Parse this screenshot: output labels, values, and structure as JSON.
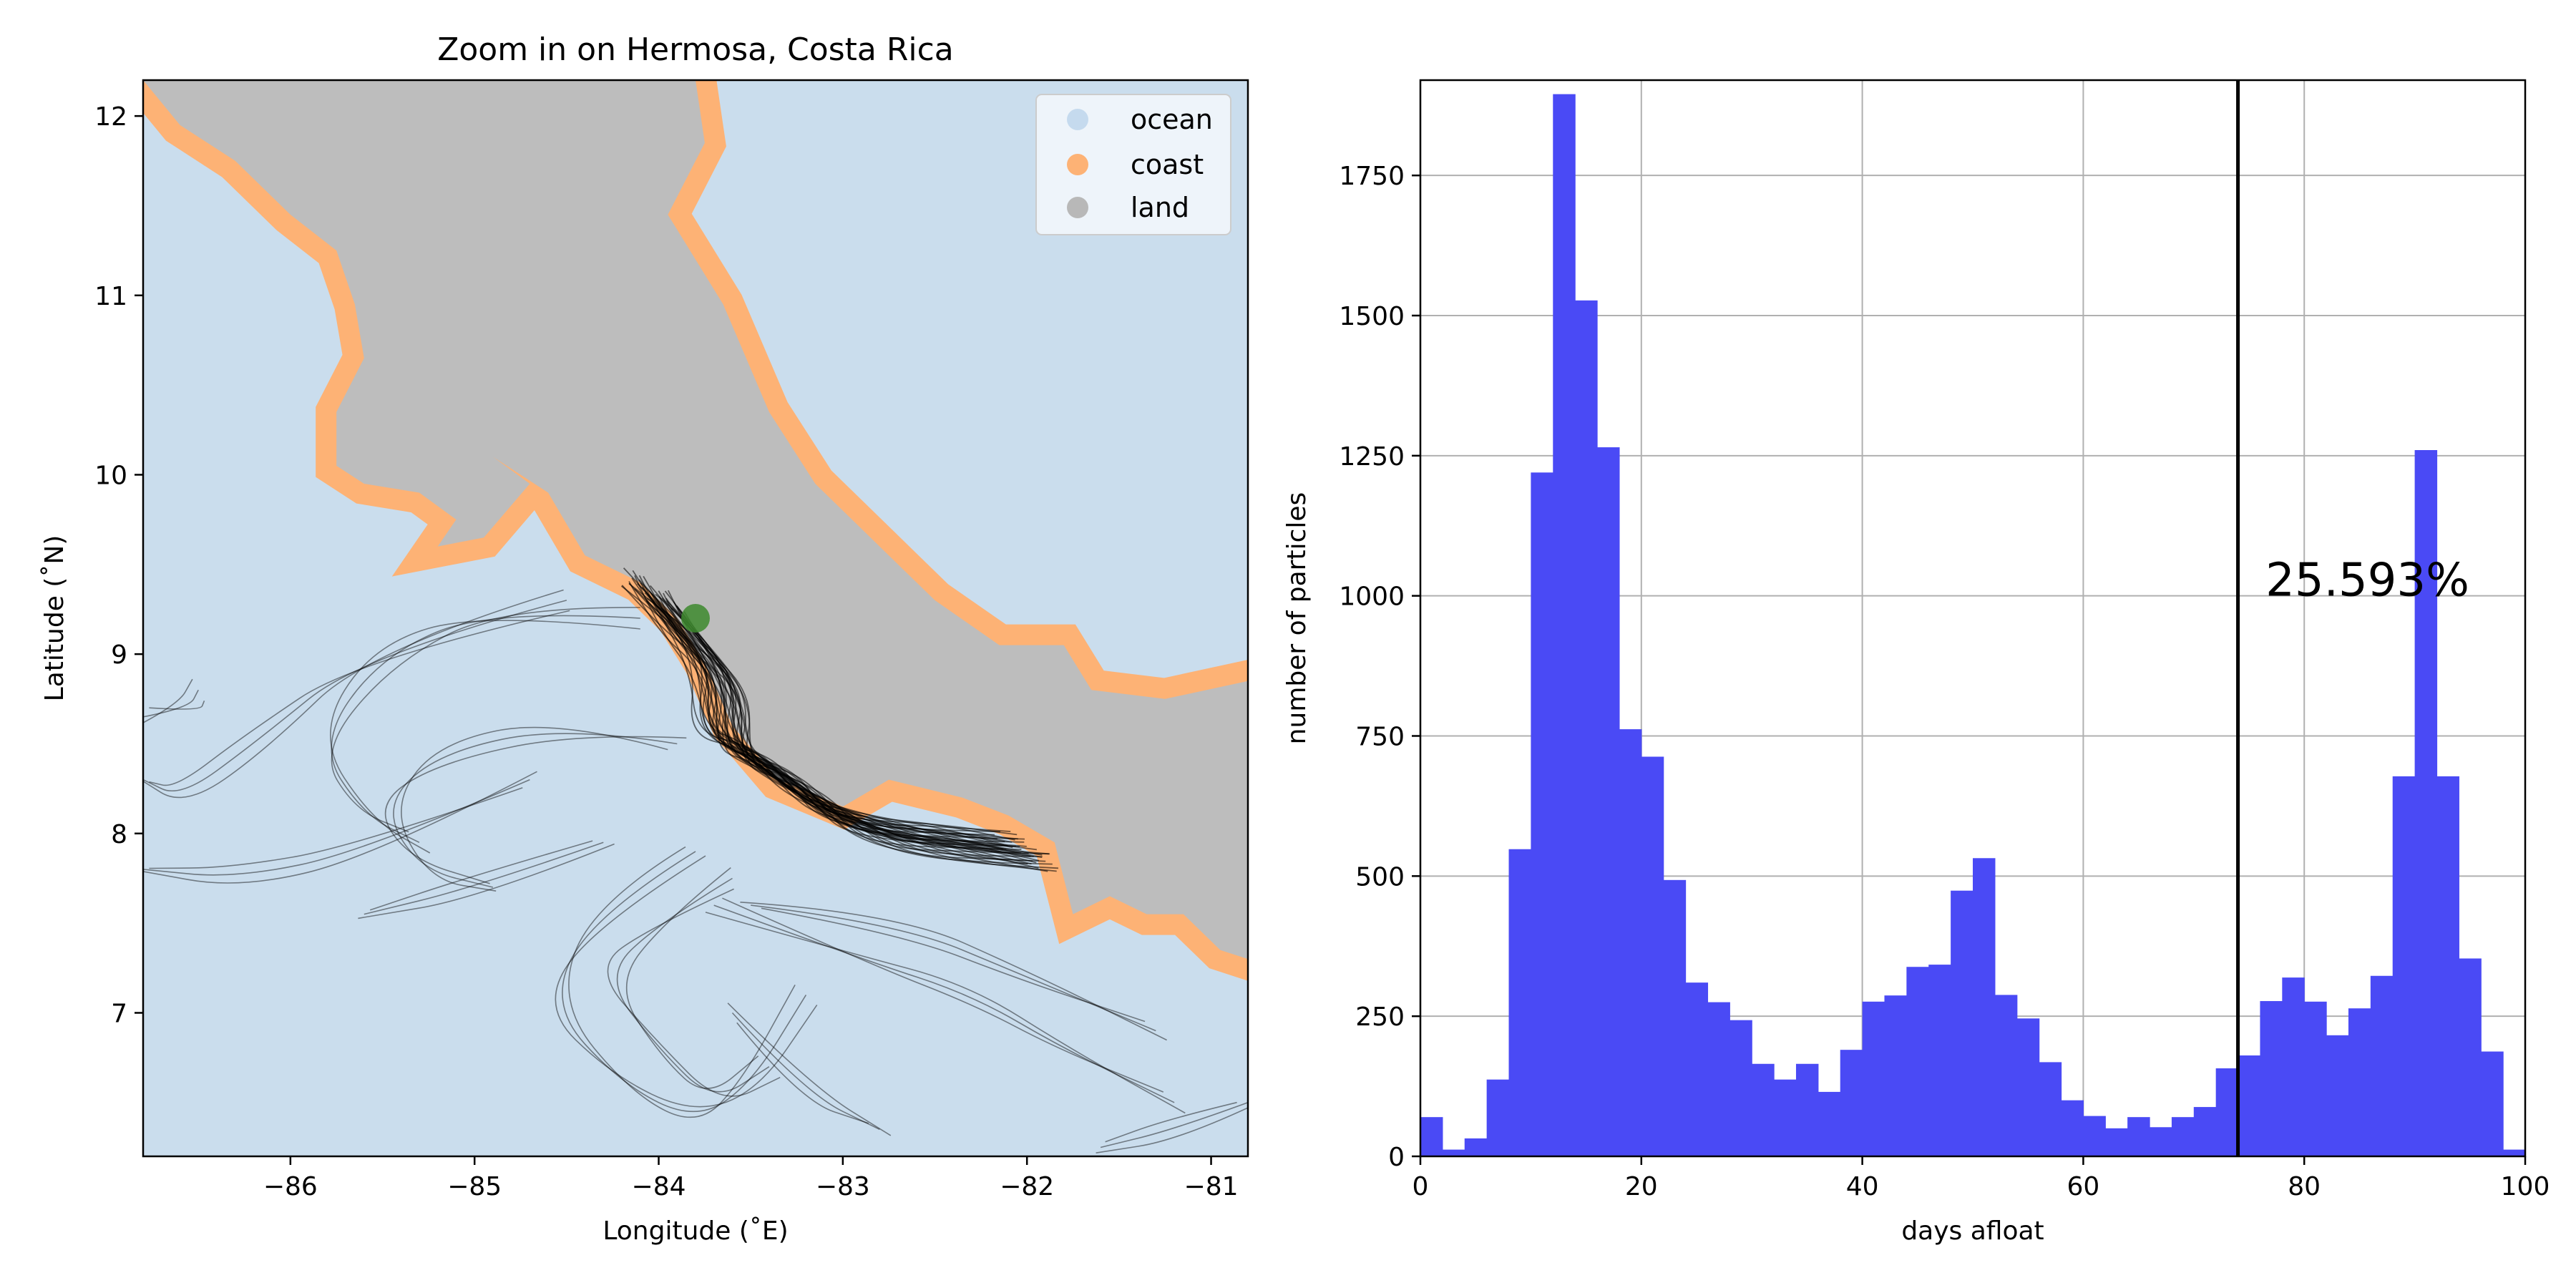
{
  "chart_data": [
    {
      "type": "map",
      "title": "Zoom in on Hermosa, Costa Rica",
      "xlabel": "Longitude (˚E)",
      "ylabel": "Latitude (˚N)",
      "xlim": [
        -86.8,
        -80.8
      ],
      "ylim": [
        6.2,
        12.2
      ],
      "xticks": [
        -86,
        -85,
        -84,
        -83,
        -82,
        -81
      ],
      "yticks": [
        7,
        8,
        9,
        10,
        11,
        12
      ],
      "xtick_labels": [
        "−86",
        "−85",
        "−84",
        "−83",
        "−82",
        "−81"
      ],
      "ytick_labels": [
        "7",
        "8",
        "9",
        "10",
        "11",
        "12"
      ],
      "legend_position": "top-right",
      "legend": [
        {
          "label": "ocean",
          "color": "#c5daee"
        },
        {
          "label": "coast",
          "color": "#fdb275"
        },
        {
          "label": "land",
          "color": "#b8b8b8"
        }
      ],
      "colors": {
        "ocean": "#cadded",
        "coast": "#fdb275",
        "land": "#bdbdbd",
        "release_site": "#3d8a2e",
        "trajectories": "#000000"
      },
      "release_site": {
        "lon": -83.8,
        "lat": 9.2
      },
      "coast_outline": [
        [
          -86.8,
          12.2
        ],
        [
          -86.6,
          11.95
        ],
        [
          -86.3,
          11.75
        ],
        [
          -86.0,
          11.45
        ],
        [
          -85.75,
          11.25
        ],
        [
          -85.65,
          10.95
        ],
        [
          -85.6,
          10.65
        ],
        [
          -85.75,
          10.35
        ],
        [
          -85.75,
          10.05
        ],
        [
          -85.6,
          9.95
        ],
        [
          -85.3,
          9.9
        ],
        [
          -85.1,
          9.75
        ],
        [
          -85.2,
          9.6
        ],
        [
          -84.95,
          9.65
        ],
        [
          -84.7,
          9.95
        ],
        [
          -84.9,
          10.1
        ],
        [
          -84.6,
          9.9
        ],
        [
          -84.4,
          9.55
        ],
        [
          -84.1,
          9.4
        ],
        [
          -83.9,
          9.2
        ],
        [
          -83.75,
          8.95
        ],
        [
          -83.6,
          8.6
        ],
        [
          -83.35,
          8.3
        ],
        [
          -83.0,
          8.15
        ],
        [
          -82.75,
          8.3
        ],
        [
          -82.35,
          8.2
        ],
        [
          -82.1,
          8.1
        ],
        [
          -81.85,
          7.95
        ],
        [
          -81.75,
          7.55
        ],
        [
          -81.55,
          7.65
        ],
        [
          -81.35,
          7.55
        ],
        [
          -81.15,
          7.55
        ],
        [
          -80.95,
          7.35
        ],
        [
          -80.8,
          7.3
        ],
        [
          -80.8,
          8.85
        ],
        [
          -81.25,
          8.75
        ],
        [
          -81.65,
          8.8
        ],
        [
          -81.8,
          9.05
        ],
        [
          -82.15,
          9.05
        ],
        [
          -82.5,
          9.3
        ],
        [
          -82.8,
          9.6
        ],
        [
          -83.15,
          9.95
        ],
        [
          -83.4,
          10.35
        ],
        [
          -83.65,
          10.95
        ],
        [
          -83.95,
          11.45
        ],
        [
          -83.75,
          11.85
        ],
        [
          -83.8,
          12.2
        ]
      ],
      "trajectory_bundle": [
        [
          -84.05,
          9.35
        ],
        [
          -83.85,
          9.1
        ],
        [
          -83.65,
          8.85
        ],
        [
          -83.65,
          8.5
        ],
        [
          -83.45,
          8.4
        ],
        [
          -83.25,
          8.25
        ],
        [
          -83.05,
          8.1
        ],
        [
          -82.75,
          8.0
        ],
        [
          -82.4,
          7.95
        ],
        [
          -82.0,
          7.9
        ]
      ],
      "drift_paths": [
        [
          [
            -84.1,
            9.2
          ],
          [
            -84.9,
            9.25
          ],
          [
            -85.5,
            9.0
          ],
          [
            -85.85,
            8.5
          ],
          [
            -85.6,
            8.1
          ],
          [
            -85.3,
            7.95
          ]
        ],
        [
          [
            -83.9,
            8.5
          ],
          [
            -84.5,
            8.6
          ],
          [
            -85.2,
            8.45
          ],
          [
            -85.5,
            8.15
          ],
          [
            -85.3,
            7.8
          ],
          [
            -84.9,
            7.7
          ]
        ],
        [
          [
            -83.8,
            7.9
          ],
          [
            -84.35,
            7.55
          ],
          [
            -84.6,
            7.05
          ],
          [
            -84.2,
            6.6
          ],
          [
            -83.8,
            6.4
          ],
          [
            -83.5,
            6.6
          ],
          [
            -83.2,
            7.1
          ]
        ],
        [
          [
            -83.6,
            7.75
          ],
          [
            -84.0,
            7.5
          ],
          [
            -84.3,
            7.2
          ],
          [
            -84.0,
            6.8
          ],
          [
            -83.7,
            6.5
          ],
          [
            -83.4,
            6.7
          ]
        ],
        [
          [
            -83.7,
            7.6
          ],
          [
            -82.9,
            7.3
          ],
          [
            -82.3,
            7.1
          ],
          [
            -81.8,
            6.8
          ],
          [
            -81.2,
            6.5
          ]
        ],
        [
          [
            -83.5,
            7.6
          ],
          [
            -82.7,
            7.5
          ],
          [
            -82.0,
            7.2
          ],
          [
            -81.3,
            6.9
          ]
        ],
        [
          [
            -84.5,
            9.3
          ],
          [
            -85.6,
            9.0
          ],
          [
            -86.2,
            8.5
          ],
          [
            -86.6,
            8.2
          ],
          [
            -86.8,
            8.3
          ]
        ],
        [
          [
            -84.7,
            8.3
          ],
          [
            -85.6,
            7.9
          ],
          [
            -86.3,
            7.75
          ],
          [
            -86.8,
            7.8
          ]
        ],
        [
          [
            -84.3,
            7.95
          ],
          [
            -85.0,
            7.7
          ],
          [
            -85.6,
            7.55
          ]
        ],
        [
          [
            -83.6,
            7.0
          ],
          [
            -83.2,
            6.55
          ],
          [
            -82.8,
            6.35
          ]
        ],
        [
          [
            -86.8,
            8.65
          ],
          [
            -86.55,
            8.7
          ],
          [
            -86.5,
            8.8
          ]
        ],
        [
          [
            -80.8,
            6.5
          ],
          [
            -81.2,
            6.35
          ],
          [
            -81.6,
            6.25
          ]
        ]
      ]
    },
    {
      "type": "bar",
      "title": "",
      "xlabel": "days afloat",
      "ylabel": "number of particles",
      "xlim": [
        0,
        100
      ],
      "ylim": [
        0,
        1920
      ],
      "xticks": [
        0,
        20,
        40,
        60,
        80,
        100
      ],
      "yticks": [
        0,
        250,
        500,
        750,
        1000,
        1250,
        1500,
        1750
      ],
      "grid": true,
      "bar_color": "#4a4af5",
      "bin_width": 2,
      "bin_edges_start": [
        0,
        2,
        4,
        6,
        8,
        10,
        12,
        14,
        16,
        18,
        20,
        22,
        24,
        26,
        28,
        30,
        32,
        34,
        36,
        38,
        40,
        42,
        44,
        46,
        48,
        50,
        52,
        54,
        56,
        58,
        60,
        62,
        64,
        66,
        68,
        70,
        72,
        74,
        76,
        78,
        80,
        82,
        84,
        86,
        88,
        90,
        92,
        94,
        96,
        98
      ],
      "values": [
        70,
        12,
        32,
        137,
        548,
        1220,
        1895,
        1527,
        1265,
        762,
        713,
        493,
        310,
        275,
        243,
        165,
        137,
        165,
        115,
        190,
        276,
        287,
        338,
        342,
        474,
        532,
        288,
        246,
        168,
        100,
        72,
        50,
        70,
        52,
        70,
        88,
        157,
        180,
        277,
        319,
        276,
        216,
        264,
        322,
        678,
        1260,
        678,
        353,
        187,
        12
      ],
      "vertical_line_x": 74,
      "annotation": "25.593%",
      "annotation_position": {
        "x": 76.5,
        "y": 1000
      }
    }
  ]
}
